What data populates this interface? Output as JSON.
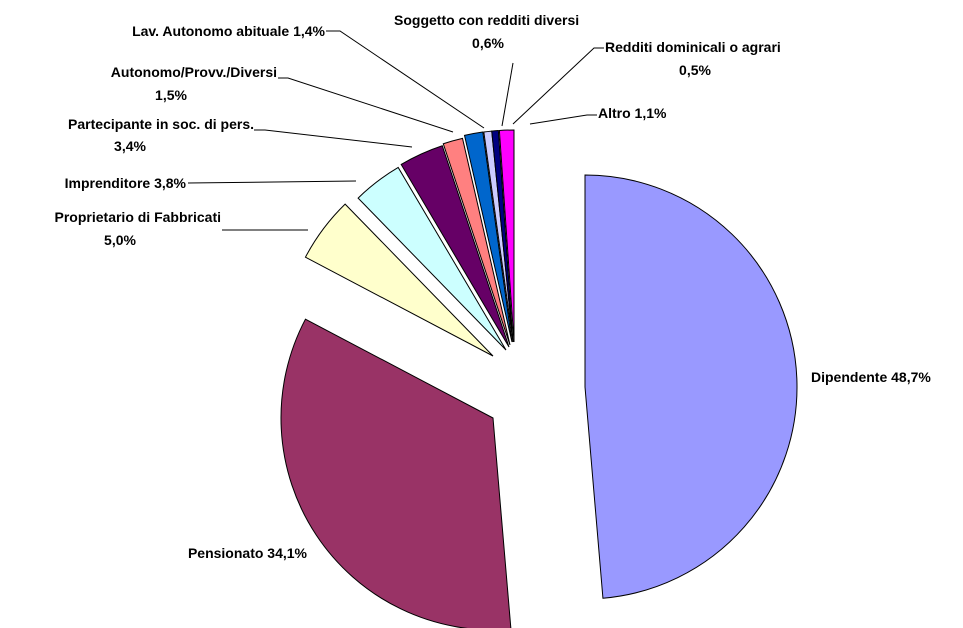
{
  "chart_data": {
    "type": "pie",
    "slices": [
      {
        "label": "Dipendente 48,7%",
        "value": 48.7,
        "color": "#9999ff"
      },
      {
        "label": "Pensionato 34,1%",
        "value": 34.1,
        "color": "#993366"
      },
      {
        "label": "Proprietario di Fabbricati",
        "label2": "5,0%",
        "value": 5.0,
        "color": "#ffffcc"
      },
      {
        "label": "Imprenditore 3,8%",
        "value": 3.8,
        "color": "#ccffff"
      },
      {
        "label": "Partecipante in soc. di pers.",
        "label2": "3,4%",
        "value": 3.4,
        "color": "#660066"
      },
      {
        "label": "Autonomo/Provv./Diversi",
        "label2": "1,5%",
        "value": 1.5,
        "color": "#ff8080"
      },
      {
        "label": "Lav. Autonomo abituale 1,4%",
        "value": 1.4,
        "color": "#0066cc"
      },
      {
        "label": "Soggetto con redditi diversi",
        "label2": "0,6%",
        "value": 0.6,
        "color": "#ccccff"
      },
      {
        "label": "Redditi dominicali o agrari",
        "label2": "0,5%",
        "value": 0.5,
        "color": "#000080"
      },
      {
        "label": "Altro 1,1%",
        "value": 1.1,
        "color": "#ff00ff"
      }
    ]
  }
}
